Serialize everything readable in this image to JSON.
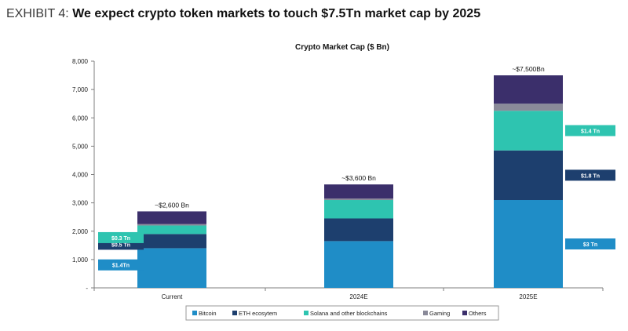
{
  "exhibit": {
    "label": "EXHIBIT 4:",
    "headline": "We expect crypto token markets to touch $7.5Tn market cap by 2025"
  },
  "chart_data": {
    "type": "bar",
    "stacked": true,
    "title": "Crypto Market Cap ($ Bn)",
    "xlabel": "",
    "ylabel": "",
    "ylim": [
      0,
      8000
    ],
    "yticks": [
      {
        "value": 0,
        "label": "-"
      },
      {
        "value": 1000,
        "label": "1,000"
      },
      {
        "value": 2000,
        "label": "2,000"
      },
      {
        "value": 3000,
        "label": "3,000"
      },
      {
        "value": 4000,
        "label": "4,000"
      },
      {
        "value": 5000,
        "label": "5,000"
      },
      {
        "value": 6000,
        "label": "6,000"
      },
      {
        "value": 7000,
        "label": "7,000"
      },
      {
        "value": 8000,
        "label": "8,000"
      }
    ],
    "categories": [
      "Current",
      "2024E",
      "2025E"
    ],
    "series": [
      {
        "name": "Bitcoin",
        "color": "#1f8dc7",
        "values": [
          1400,
          1650,
          3100
        ]
      },
      {
        "name": "ETH ecosytem",
        "color": "#1d3f6e",
        "values": [
          500,
          800,
          1750
        ]
      },
      {
        "name": "Solana and other blockchains",
        "color": "#2ec4b0",
        "values": [
          300,
          650,
          1400
        ]
      },
      {
        "name": "Gaming",
        "color": "#8a8a99",
        "values": [
          50,
          50,
          250
        ]
      },
      {
        "name": "Others",
        "color": "#3b2f6b",
        "values": [
          450,
          500,
          1000
        ]
      }
    ],
    "totals": [
      "~$2,600 Bn",
      "~$3,600 Bn",
      "~$7,500Bn"
    ],
    "segment_callouts": [
      {
        "category": "Current",
        "series": "Bitcoin",
        "label": "$1.4Tn",
        "side": "left"
      },
      {
        "category": "Current",
        "series": "ETH ecosytem",
        "label": "$0.5 Tn",
        "side": "left"
      },
      {
        "category": "Current",
        "series": "Solana and other blockchains",
        "label": "$0.3 Tn",
        "side": "left"
      },
      {
        "category": "2025E",
        "series": "Bitcoin",
        "label": "$3 Tn",
        "side": "right"
      },
      {
        "category": "2025E",
        "series": "ETH ecosytem",
        "label": "$1.8 Tn",
        "side": "right"
      },
      {
        "category": "2025E",
        "series": "Solana and other blockchains",
        "label": "$1.4 Tn",
        "side": "right"
      }
    ],
    "legend_position": "bottom",
    "grid": false
  }
}
